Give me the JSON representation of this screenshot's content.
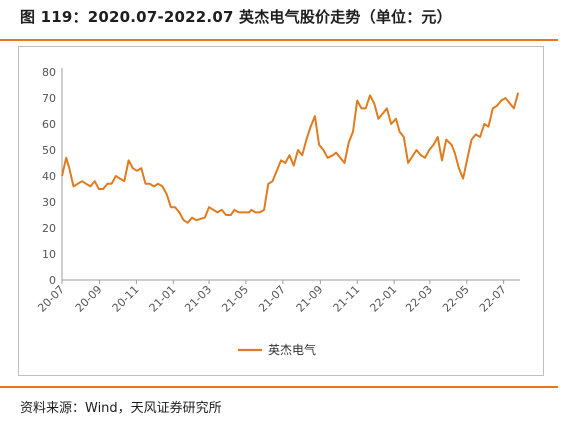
{
  "figure": {
    "title": "图 119：2020.07-2022.07  英杰电气股价走势（单位：元）",
    "source": "资料来源：Wind，天风证券研究所"
  },
  "colors": {
    "accent": "#e87722",
    "line": "#e07b1f",
    "axis": "#bfbfbf"
  },
  "chart_data": {
    "type": "line",
    "title": "",
    "xlabel": "",
    "ylabel": "",
    "ylim": [
      0,
      80
    ],
    "yticks": [
      0,
      10,
      20,
      30,
      40,
      50,
      60,
      70,
      80
    ],
    "xticks": [
      "20-07",
      "20-09",
      "20-11",
      "21-01",
      "21-03",
      "21-05",
      "21-07",
      "21-09",
      "21-11",
      "22-01",
      "22-03",
      "22-05",
      "22-07"
    ],
    "legend_position": "bottom-center",
    "grid": false,
    "series": [
      {
        "name": "英杰电气",
        "x": [
          "2020-07-01",
          "2020-07-08",
          "2020-07-13",
          "2020-07-20",
          "2020-07-27",
          "2020-08-03",
          "2020-08-10",
          "2020-08-17",
          "2020-08-24",
          "2020-08-31",
          "2020-09-07",
          "2020-09-14",
          "2020-09-21",
          "2020-09-28",
          "2020-10-12",
          "2020-10-19",
          "2020-10-26",
          "2020-11-02",
          "2020-11-09",
          "2020-11-16",
          "2020-11-23",
          "2020-11-30",
          "2020-12-07",
          "2020-12-14",
          "2020-12-21",
          "2020-12-28",
          "2021-01-04",
          "2021-01-11",
          "2021-01-18",
          "2021-01-25",
          "2021-02-01",
          "2021-02-08",
          "2021-02-22",
          "2021-03-01",
          "2021-03-08",
          "2021-03-15",
          "2021-03-22",
          "2021-03-29",
          "2021-04-06",
          "2021-04-12",
          "2021-04-19",
          "2021-04-26",
          "2021-05-06",
          "2021-05-10",
          "2021-05-17",
          "2021-05-24",
          "2021-05-31",
          "2021-06-07",
          "2021-06-14",
          "2021-06-21",
          "2021-06-28",
          "2021-07-05",
          "2021-07-12",
          "2021-07-19",
          "2021-07-26",
          "2021-08-02",
          "2021-08-09",
          "2021-08-16",
          "2021-08-23",
          "2021-08-30",
          "2021-09-06",
          "2021-09-13",
          "2021-09-22",
          "2021-09-27",
          "2021-10-11",
          "2021-10-18",
          "2021-10-25",
          "2021-11-01",
          "2021-11-08",
          "2021-11-15",
          "2021-11-22",
          "2021-11-29",
          "2021-12-06",
          "2021-12-13",
          "2021-12-20",
          "2021-12-27",
          "2022-01-04",
          "2022-01-10",
          "2022-01-17",
          "2022-01-24",
          "2022-02-07",
          "2022-02-14",
          "2022-02-21",
          "2022-02-28",
          "2022-03-07",
          "2022-03-14",
          "2022-03-21",
          "2022-03-28",
          "2022-04-06",
          "2022-04-11",
          "2022-04-18",
          "2022-04-25",
          "2022-05-05",
          "2022-05-09",
          "2022-05-16",
          "2022-05-23",
          "2022-05-30",
          "2022-06-06",
          "2022-06-13",
          "2022-06-20",
          "2022-06-27",
          "2022-07-04",
          "2022-07-11",
          "2022-07-18",
          "2022-07-25"
        ],
        "values": [
          40,
          47,
          43,
          36,
          37,
          38,
          37,
          36,
          38,
          35,
          35,
          37,
          37,
          40,
          38,
          46,
          43,
          42,
          43,
          37,
          37,
          36,
          37,
          36,
          33,
          28,
          28,
          26,
          23,
          22,
          24,
          23,
          24,
          28,
          27,
          26,
          27,
          25,
          25,
          27,
          26,
          26,
          26,
          27,
          26,
          26,
          27,
          37,
          38,
          42,
          46,
          45,
          48,
          44,
          50,
          48,
          54,
          59,
          63,
          52,
          50,
          47,
          48,
          49,
          45,
          53,
          57,
          69,
          66,
          66,
          71,
          68,
          62,
          64,
          66,
          60,
          62,
          57,
          55,
          45,
          50,
          48,
          47,
          50,
          52,
          55,
          46,
          54,
          52,
          49,
          43,
          39,
          50,
          54,
          56,
          55,
          60,
          59,
          66,
          67,
          69,
          70,
          68,
          66,
          72
        ]
      }
    ]
  }
}
